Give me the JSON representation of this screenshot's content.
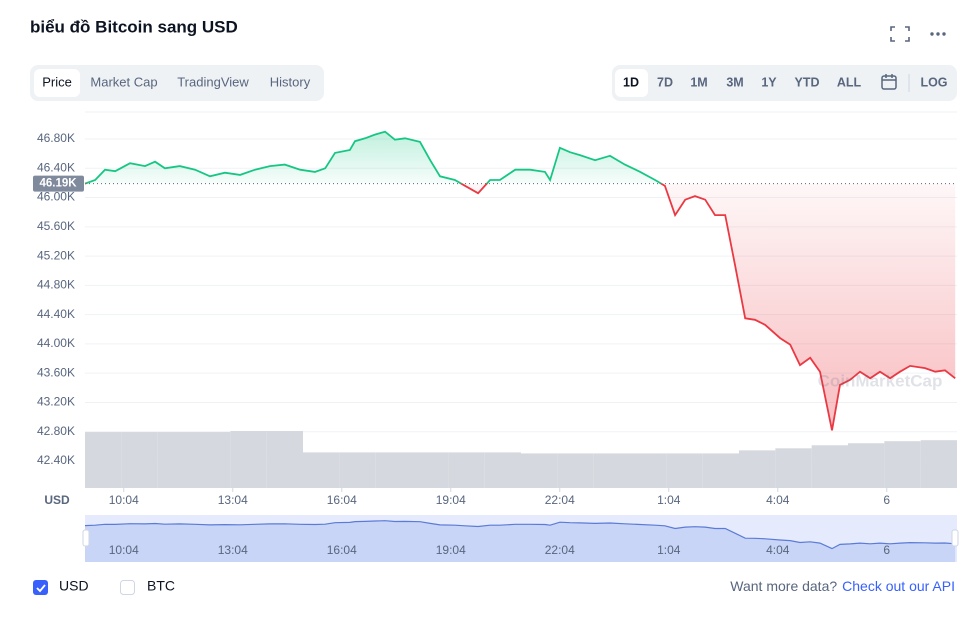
{
  "header": {
    "title": "biểu đồ Bitcoin sang USD"
  },
  "tabs": [
    "Price",
    "Market Cap",
    "TradingView",
    "History"
  ],
  "ranges": [
    "1D",
    "7D",
    "1M",
    "3M",
    "1Y",
    "YTD",
    "ALL"
  ],
  "log_button": "LOG",
  "watermark": "CoinMarketCap",
  "currency_toggles": [
    {
      "label": "USD",
      "checked": true
    },
    {
      "label": "BTC",
      "checked": false
    }
  ],
  "footer": {
    "prompt": "Want more data?",
    "link": "Check out our API"
  },
  "chart_data": {
    "type": "area",
    "ylabel": "USD",
    "up_color": "#16c784",
    "down_color": "#ea3943",
    "reference": {
      "value": 46190,
      "label": "46.19K"
    },
    "xlim": [
      9,
      33
    ],
    "ylim": [
      42031,
      47169
    ],
    "grid": true,
    "xticks": [
      {
        "value": 10.067,
        "label": "10:04"
      },
      {
        "value": 13.067,
        "label": "13:04"
      },
      {
        "value": 16.067,
        "label": "16:04"
      },
      {
        "value": 19.067,
        "label": "19:04"
      },
      {
        "value": 22.067,
        "label": "22:04"
      },
      {
        "value": 25.067,
        "label": "1:04"
      },
      {
        "value": 28.067,
        "label": "4:04"
      },
      {
        "value": 31.067,
        "label": "6"
      }
    ],
    "yticks": [
      {
        "value": 42400,
        "label": "42.40K"
      },
      {
        "value": 42800,
        "label": "42.80K"
      },
      {
        "value": 43200,
        "label": "43.20K"
      },
      {
        "value": 43600,
        "label": "43.60K"
      },
      {
        "value": 44000,
        "label": "44.00K"
      },
      {
        "value": 44400,
        "label": "44.40K"
      },
      {
        "value": 44800,
        "label": "44.80K"
      },
      {
        "value": 45200,
        "label": "45.20K"
      },
      {
        "value": 45600,
        "label": "45.60K"
      },
      {
        "value": 46000,
        "label": "46.00K"
      },
      {
        "value": 46400,
        "label": "46.40K"
      },
      {
        "value": 46800,
        "label": "46.80K"
      }
    ],
    "x": [
      9.0,
      9.28,
      9.55,
      9.83,
      10.24,
      10.65,
      10.93,
      11.2,
      11.61,
      12.03,
      12.44,
      12.85,
      13.27,
      13.68,
      14.09,
      14.5,
      14.92,
      15.33,
      15.61,
      15.88,
      16.29,
      16.43,
      16.71,
      16.98,
      17.26,
      17.53,
      17.81,
      18.22,
      18.5,
      18.77,
      19.18,
      19.46,
      19.82,
      20.15,
      20.42,
      20.84,
      21.25,
      21.66,
      21.8,
      22.07,
      22.35,
      22.62,
      23.04,
      23.45,
      23.86,
      24.28,
      24.69,
      24.96,
      25.24,
      25.52,
      25.79,
      26.07,
      26.34,
      26.62,
      26.89,
      27.17,
      27.44,
      27.72,
      28.13,
      28.41,
      28.68,
      28.96,
      29.23,
      29.56,
      29.78,
      30.06,
      30.33,
      30.61,
      30.88,
      31.16,
      31.43,
      31.71,
      32.12,
      32.4,
      32.67,
      32.95
    ],
    "series": [
      {
        "values": [
          46190,
          46240,
          46380,
          46360,
          46470,
          46430,
          46490,
          46400,
          46430,
          46380,
          46290,
          46340,
          46310,
          46380,
          46430,
          46450,
          46380,
          46350,
          46400,
          46610,
          46650,
          46770,
          46810,
          46860,
          46900,
          46790,
          46810,
          46760,
          46510,
          46290,
          46240,
          46160,
          46060,
          46240,
          46240,
          46380,
          46380,
          46350,
          46240,
          46680,
          46620,
          46580,
          46510,
          46570,
          46450,
          46350,
          46240,
          46160,
          45760,
          45970,
          46020,
          45970,
          45760,
          45760,
          45080,
          44350,
          44330,
          44260,
          44080,
          43990,
          43710,
          43810,
          43620,
          42820,
          43440,
          43510,
          43620,
          43530,
          43620,
          43530,
          43620,
          43700,
          43670,
          43620,
          43640,
          43530
        ]
      }
    ],
    "volume": {
      "x": [
        9,
        10,
        11,
        12,
        13,
        14,
        15,
        16,
        17,
        18,
        19,
        20,
        21,
        22,
        23,
        24,
        25,
        26,
        27,
        28,
        29,
        30,
        31,
        32
      ],
      "values": [
        55,
        55,
        55,
        55,
        56,
        56,
        35,
        35,
        35,
        35,
        35,
        35,
        34,
        34,
        34,
        34,
        34,
        34,
        37,
        39,
        42,
        44,
        46,
        47
      ]
    }
  }
}
